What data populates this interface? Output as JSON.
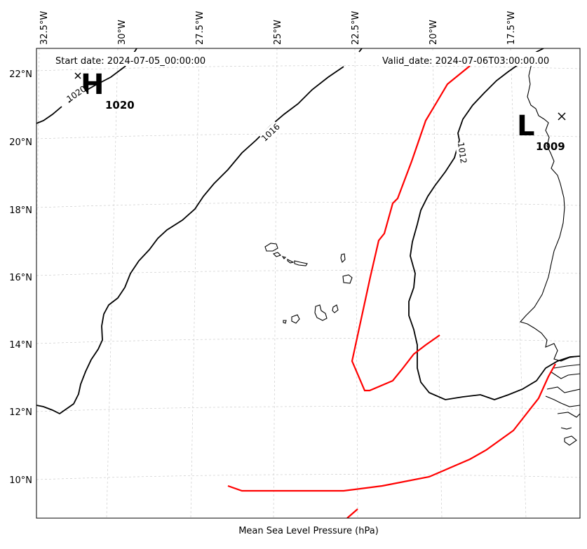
{
  "map": {
    "start_date": "Start date: 2024-07-05_00:00:00",
    "valid_date": "Valid_date: 2024-07-06T03:00:00.00",
    "caption": "Mean Sea Level Pressure (hPa)",
    "lon_ticks": [
      "32.5°W",
      "30°W",
      "27.5°W",
      "25°W",
      "22.5°W",
      "20°W",
      "17.5°W"
    ],
    "lat_ticks": [
      "22°N",
      "20°N",
      "18°N",
      "16°N",
      "14°N",
      "12°N",
      "10°N"
    ],
    "high": {
      "letter": "H",
      "value": "1020"
    },
    "low": {
      "letter": "L",
      "value": "1009"
    },
    "contours": {
      "label_1020": "1020",
      "label_1016": "1016",
      "label_1012": "1012"
    },
    "colors": {
      "isobar": "#000000",
      "trough": "#ff0000",
      "grid": "#cccccc"
    }
  }
}
